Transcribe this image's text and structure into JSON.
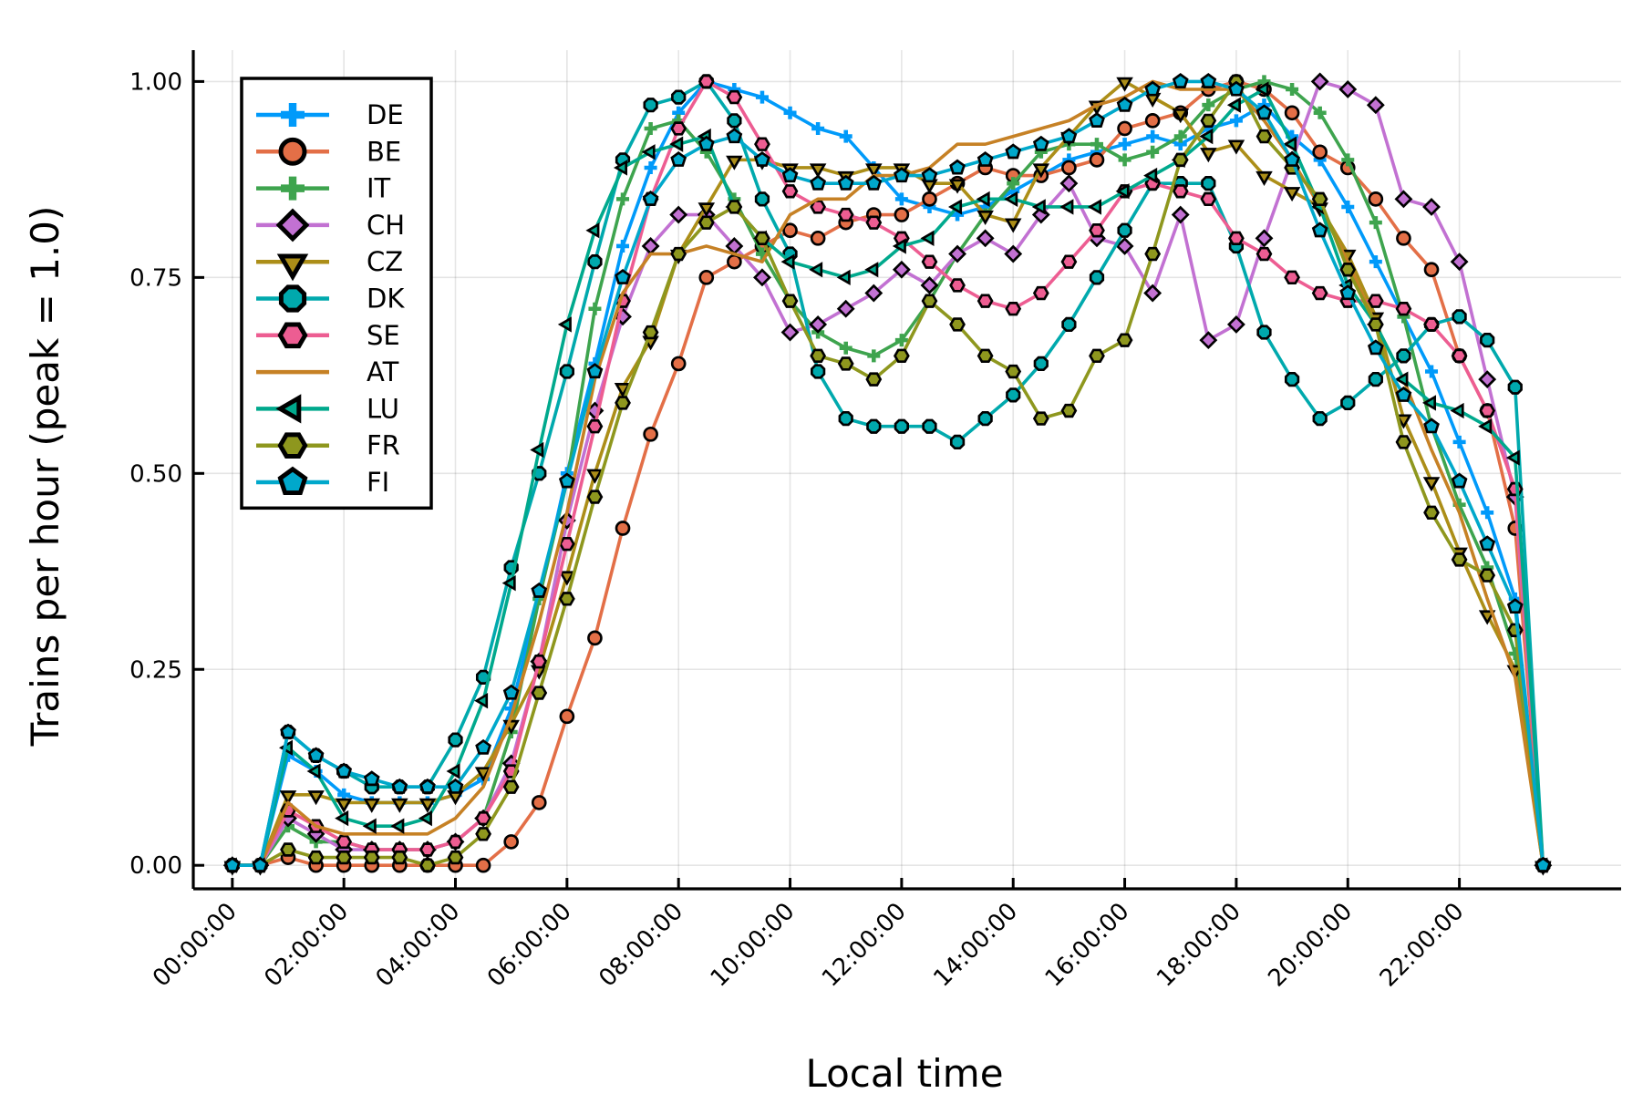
{
  "chart_data": {
    "type": "line",
    "title": "",
    "xlabel": "Local time",
    "ylabel": "Trains per hour (peak = 1.0)",
    "ylim": [
      -0.03,
      1.04
    ],
    "xlim": [
      -0.7,
      24.9
    ],
    "yticks": [
      0.0,
      0.25,
      0.5,
      0.75,
      1.0
    ],
    "ytick_labels": [
      "0.00",
      "0.25",
      "0.50",
      "0.75",
      "1.00"
    ],
    "xticks": [
      0,
      2,
      4,
      6,
      8,
      10,
      12,
      14,
      16,
      18,
      20,
      22
    ],
    "xtick_labels": [
      "00:00:00",
      "02:00:00",
      "04:00:00",
      "06:00:00",
      "08:00:00",
      "10:00:00",
      "12:00:00",
      "14:00:00",
      "16:00:00",
      "18:00:00",
      "20:00:00",
      "22:00:00"
    ],
    "grid": true,
    "legend_position": "top-left",
    "x": [
      0,
      0.5,
      1,
      1.5,
      2,
      2.5,
      3,
      3.5,
      4,
      4.5,
      5,
      5.5,
      6,
      6.5,
      7,
      7.5,
      8,
      8.5,
      9,
      9.5,
      10,
      10.5,
      11,
      11.5,
      12,
      12.5,
      13,
      13.5,
      14,
      14.5,
      15,
      15.5,
      16,
      16.5,
      17,
      17.5,
      18,
      18.5,
      19,
      19.5,
      20,
      20.5,
      21,
      21.5,
      22,
      22.5,
      23,
      23.5
    ],
    "series": [
      {
        "name": "DE",
        "color": "#009AFA",
        "marker": "cross",
        "values": [
          0,
          0,
          0.14,
          0.12,
          0.09,
          0.08,
          0.08,
          0.08,
          0.09,
          0.11,
          0.2,
          0.34,
          0.5,
          0.64,
          0.79,
          0.89,
          0.96,
          1.0,
          0.99,
          0.98,
          0.96,
          0.94,
          0.93,
          0.89,
          0.85,
          0.84,
          0.83,
          0.84,
          0.86,
          0.88,
          0.9,
          0.91,
          0.92,
          0.93,
          0.92,
          0.94,
          0.95,
          0.97,
          0.93,
          0.9,
          0.84,
          0.77,
          0.7,
          0.63,
          0.54,
          0.45,
          0.34,
          0
        ]
      },
      {
        "name": "BE",
        "color": "#E36F47",
        "marker": "circle",
        "values": [
          0,
          0,
          0.01,
          0,
          0,
          0,
          0,
          0,
          0,
          0,
          0.03,
          0.08,
          0.19,
          0.29,
          0.43,
          0.55,
          0.64,
          0.75,
          0.77,
          0.79,
          0.81,
          0.8,
          0.82,
          0.83,
          0.83,
          0.85,
          0.87,
          0.89,
          0.88,
          0.88,
          0.89,
          0.9,
          0.94,
          0.95,
          0.96,
          0.99,
          1.0,
          0.99,
          0.96,
          0.91,
          0.89,
          0.85,
          0.8,
          0.76,
          0.65,
          0.58,
          0.43,
          0
        ]
      },
      {
        "name": "IT",
        "color": "#3EA44E",
        "marker": "cross",
        "values": [
          0,
          0,
          0.05,
          0.03,
          0.03,
          0.02,
          0.02,
          0.02,
          0.03,
          0.06,
          0.17,
          0.34,
          0.49,
          0.71,
          0.85,
          0.94,
          0.95,
          0.91,
          0.85,
          0.78,
          0.72,
          0.68,
          0.66,
          0.65,
          0.67,
          0.72,
          0.78,
          0.83,
          0.87,
          0.91,
          0.92,
          0.92,
          0.9,
          0.91,
          0.93,
          0.97,
          0.99,
          1.0,
          0.99,
          0.96,
          0.9,
          0.82,
          0.7,
          0.56,
          0.46,
          0.38,
          0.27,
          0
        ]
      },
      {
        "name": "CH",
        "color": "#C271D2",
        "marker": "diamond",
        "values": [
          0,
          0,
          0.06,
          0.04,
          0.02,
          0.02,
          0.02,
          0.02,
          0.03,
          0.06,
          0.13,
          0.26,
          0.44,
          0.58,
          0.7,
          0.79,
          0.83,
          0.83,
          0.79,
          0.75,
          0.68,
          0.69,
          0.71,
          0.73,
          0.76,
          0.74,
          0.78,
          0.8,
          0.78,
          0.83,
          0.87,
          0.8,
          0.79,
          0.73,
          0.83,
          0.67,
          0.69,
          0.8,
          0.9,
          1.0,
          0.99,
          0.97,
          0.85,
          0.84,
          0.77,
          0.62,
          0.47,
          0
        ]
      },
      {
        "name": "CZ",
        "color": "#AC8E18",
        "marker": "triangle-down",
        "values": [
          0,
          0,
          0.09,
          0.09,
          0.08,
          0.08,
          0.08,
          0.08,
          0.09,
          0.12,
          0.18,
          0.25,
          0.37,
          0.5,
          0.61,
          0.67,
          0.78,
          0.84,
          0.9,
          0.9,
          0.89,
          0.89,
          0.88,
          0.89,
          0.89,
          0.87,
          0.87,
          0.83,
          0.82,
          0.89,
          0.93,
          0.97,
          1.0,
          0.98,
          0.96,
          0.91,
          0.92,
          0.88,
          0.86,
          0.84,
          0.78,
          0.7,
          0.57,
          0.49,
          0.4,
          0.32,
          0.25,
          0
        ]
      },
      {
        "name": "DK",
        "color": "#00A9AD",
        "marker": "octagon",
        "values": [
          0,
          0,
          0.17,
          0.14,
          0.12,
          0.1,
          0.1,
          0.1,
          0.16,
          0.24,
          0.38,
          0.5,
          0.63,
          0.77,
          0.9,
          0.97,
          0.98,
          1.0,
          0.95,
          0.85,
          0.78,
          0.63,
          0.57,
          0.56,
          0.56,
          0.56,
          0.54,
          0.57,
          0.6,
          0.64,
          0.69,
          0.75,
          0.81,
          0.87,
          0.87,
          0.87,
          0.79,
          0.68,
          0.62,
          0.57,
          0.59,
          0.62,
          0.65,
          0.69,
          0.7,
          0.67,
          0.61,
          0
        ]
      },
      {
        "name": "SE",
        "color": "#ED5D92",
        "marker": "hexagon",
        "values": [
          0,
          0,
          0.07,
          0.05,
          0.03,
          0.02,
          0.02,
          0.02,
          0.03,
          0.06,
          0.12,
          0.26,
          0.41,
          0.56,
          0.72,
          0.85,
          0.94,
          1.0,
          0.98,
          0.92,
          0.86,
          0.84,
          0.83,
          0.82,
          0.8,
          0.77,
          0.74,
          0.72,
          0.71,
          0.73,
          0.77,
          0.81,
          0.86,
          0.87,
          0.86,
          0.85,
          0.8,
          0.78,
          0.75,
          0.73,
          0.72,
          0.72,
          0.71,
          0.69,
          0.65,
          0.58,
          0.48,
          0
        ]
      },
      {
        "name": "AT",
        "color": "#C68125",
        "marker": "none",
        "values": [
          0,
          0,
          0.08,
          0.05,
          0.04,
          0.04,
          0.04,
          0.04,
          0.06,
          0.1,
          0.19,
          0.31,
          0.45,
          0.62,
          0.73,
          0.78,
          0.78,
          0.79,
          0.78,
          0.77,
          0.83,
          0.85,
          0.85,
          0.88,
          0.88,
          0.89,
          0.92,
          0.92,
          0.93,
          0.94,
          0.95,
          0.97,
          0.98,
          1.0,
          0.99,
          0.99,
          0.99,
          0.95,
          0.9,
          0.84,
          0.77,
          0.69,
          0.62,
          0.53,
          0.45,
          0.34,
          0.24,
          0
        ]
      },
      {
        "name": "LU",
        "color": "#00A98D",
        "marker": "triangle-left",
        "values": [
          0,
          0,
          0.15,
          0.12,
          0.06,
          0.05,
          0.05,
          0.06,
          0.12,
          0.21,
          0.36,
          0.53,
          0.69,
          0.81,
          0.89,
          0.91,
          0.92,
          0.93,
          0.84,
          0.8,
          0.77,
          0.76,
          0.75,
          0.76,
          0.79,
          0.8,
          0.84,
          0.85,
          0.85,
          0.84,
          0.84,
          0.84,
          0.86,
          0.88,
          0.9,
          0.93,
          0.97,
          0.99,
          0.92,
          0.84,
          0.74,
          0.69,
          0.62,
          0.59,
          0.58,
          0.56,
          0.52,
          0
        ]
      },
      {
        "name": "FR",
        "color": "#8E971E",
        "marker": "hexagon",
        "values": [
          0,
          0,
          0.02,
          0.01,
          0.01,
          0.01,
          0.01,
          0,
          0.01,
          0.04,
          0.1,
          0.22,
          0.34,
          0.47,
          0.59,
          0.68,
          0.78,
          0.82,
          0.84,
          0.8,
          0.72,
          0.65,
          0.64,
          0.62,
          0.65,
          0.72,
          0.69,
          0.65,
          0.63,
          0.57,
          0.58,
          0.65,
          0.67,
          0.78,
          0.9,
          0.95,
          1.0,
          0.93,
          0.89,
          0.85,
          0.76,
          0.69,
          0.54,
          0.45,
          0.39,
          0.37,
          0.3,
          0
        ]
      },
      {
        "name": "FI",
        "color": "#00A8CB",
        "marker": "pentagon",
        "values": [
          0,
          0,
          0.17,
          0.14,
          0.12,
          0.11,
          0.1,
          0.1,
          0.1,
          0.15,
          0.22,
          0.35,
          0.49,
          0.63,
          0.75,
          0.85,
          0.9,
          0.92,
          0.93,
          0.9,
          0.88,
          0.87,
          0.87,
          0.87,
          0.88,
          0.88,
          0.89,
          0.9,
          0.91,
          0.92,
          0.93,
          0.95,
          0.97,
          0.99,
          1.0,
          1.0,
          0.99,
          0.96,
          0.9,
          0.81,
          0.73,
          0.66,
          0.6,
          0.56,
          0.49,
          0.41,
          0.33,
          0
        ]
      }
    ]
  }
}
